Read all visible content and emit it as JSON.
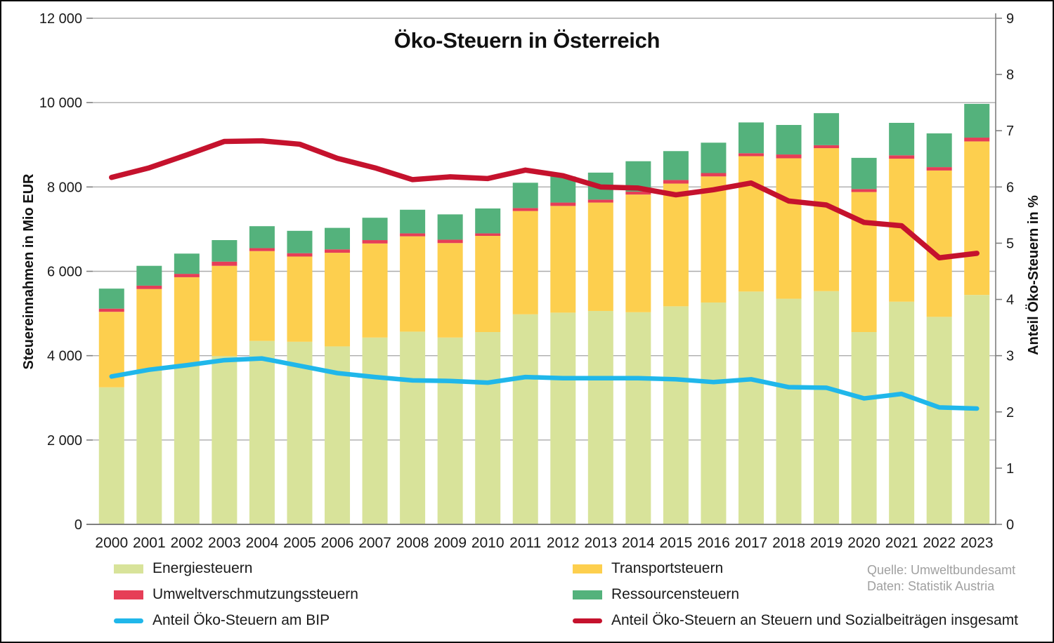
{
  "title": "Öko-Steuern in Österreich",
  "source": {
    "line1": "Quelle: Umweltbundesamt",
    "line2": "Daten: Statistik Austria"
  },
  "colors": {
    "energie": "#d8e39a",
    "transport": "#fdcf4e",
    "umwelt": "#e63e57",
    "ressourcen": "#54b27c",
    "bip_line": "#20b7ea",
    "anteil_line": "#c5122d",
    "grid": "#ababab",
    "axis": "#7f7f7f",
    "text": "#1a1a1a",
    "source_text": "#a0a0a0"
  },
  "legend": {
    "items": [
      {
        "label": "Energiesteuern",
        "type": "swatch",
        "colorKey": "energie"
      },
      {
        "label": "Transportsteuern",
        "type": "swatch",
        "colorKey": "transport"
      },
      {
        "label": "Umweltverschmutzungssteuern",
        "type": "swatch",
        "colorKey": "umwelt"
      },
      {
        "label": "Ressourcensteuern",
        "type": "swatch",
        "colorKey": "ressourcen"
      },
      {
        "label": "Anteil Öko-Steuern am BIP",
        "type": "line",
        "colorKey": "bip_line"
      },
      {
        "label": "Anteil Öko-Steuern an Steuern und Sozialbeiträgen insgesamt",
        "type": "line",
        "colorKey": "anteil_line"
      }
    ]
  },
  "chart_data": {
    "type": "bar+line",
    "title": "Öko-Steuern in Österreich",
    "categories": [
      "2000",
      "2001",
      "2002",
      "2003",
      "2004",
      "2005",
      "2006",
      "2007",
      "2008",
      "2009",
      "2010",
      "2011",
      "2012",
      "2013",
      "2014",
      "2015",
      "2016",
      "2017",
      "2018",
      "2019",
      "2020",
      "2021",
      "2022",
      "2023"
    ],
    "left_axis": {
      "title": "Steuereinnahmen in Mio EUR",
      "min": 0,
      "max": 12000,
      "step": 2000,
      "ticks": [
        {
          "v": 0,
          "label": "0"
        },
        {
          "v": 2000,
          "label": "2 000"
        },
        {
          "v": 4000,
          "label": "4 000"
        },
        {
          "v": 6000,
          "label": "6 000"
        },
        {
          "v": 8000,
          "label": "8 000"
        },
        {
          "v": 10000,
          "label": "10 000"
        },
        {
          "v": 12000,
          "label": "12 000"
        }
      ]
    },
    "right_axis": {
      "title": "Anteil Öko-Steuern in %",
      "min": 0,
      "max": 9,
      "step": 1,
      "ticks": [
        {
          "v": 0,
          "label": "0"
        },
        {
          "v": 1,
          "label": "1"
        },
        {
          "v": 2,
          "label": "2"
        },
        {
          "v": 3,
          "label": "3"
        },
        {
          "v": 4,
          "label": "4"
        },
        {
          "v": 5,
          "label": "5"
        },
        {
          "v": 6,
          "label": "6"
        },
        {
          "v": 7,
          "label": "7"
        },
        {
          "v": 8,
          "label": "8"
        },
        {
          "v": 9,
          "label": "9"
        }
      ]
    },
    "grid": true,
    "legend_position": "bottom",
    "series": [
      {
        "name": "Energiesteuern",
        "type": "bar",
        "axis": "left",
        "colorKey": "energie",
        "values": [
          3250,
          3640,
          3750,
          3990,
          4350,
          4330,
          4220,
          4430,
          4570,
          4430,
          4560,
          4980,
          5020,
          5060,
          5030,
          5170,
          5260,
          5520,
          5350,
          5530,
          4560,
          5280,
          4920,
          5440
        ]
      },
      {
        "name": "Transportsteuern",
        "type": "bar",
        "axis": "left",
        "colorKey": "transport",
        "values": [
          1790,
          1940,
          2110,
          2140,
          2130,
          2020,
          2220,
          2230,
          2260,
          2240,
          2280,
          2450,
          2530,
          2570,
          2790,
          2910,
          2990,
          3210,
          3330,
          3390,
          3320,
          3390,
          3470,
          3640
        ]
      },
      {
        "name": "Umweltverschmutzungssteuern",
        "type": "bar",
        "axis": "left",
        "colorKey": "umwelt",
        "values": [
          75,
          80,
          80,
          100,
          70,
          80,
          80,
          80,
          70,
          80,
          60,
          70,
          80,
          70,
          70,
          85,
          80,
          70,
          90,
          70,
          70,
          80,
          80,
          90
        ]
      },
      {
        "name": "Ressourcensteuern",
        "type": "bar",
        "axis": "left",
        "colorKey": "ressourcen",
        "values": [
          475,
          470,
          480,
          510,
          520,
          530,
          510,
          530,
          560,
          600,
          590,
          600,
          620,
          640,
          720,
          685,
          720,
          730,
          700,
          760,
          740,
          770,
          800,
          800
        ]
      },
      {
        "name": "Anteil Öko-Steuern am BIP",
        "type": "line",
        "axis": "right",
        "colorKey": "bip_line",
        "width": 6.5,
        "values": [
          2.63,
          2.75,
          2.83,
          2.92,
          2.95,
          2.82,
          2.69,
          2.62,
          2.56,
          2.55,
          2.52,
          2.62,
          2.6,
          2.6,
          2.6,
          2.58,
          2.53,
          2.58,
          2.44,
          2.43,
          2.24,
          2.32,
          2.08,
          2.06
        ]
      },
      {
        "name": "Anteil Öko-Steuern an Steuern und Sozialbeiträgen insgesamt",
        "type": "line",
        "axis": "right",
        "colorKey": "anteil_line",
        "width": 7.5,
        "values": [
          6.17,
          6.34,
          6.57,
          6.81,
          6.82,
          6.76,
          6.51,
          6.34,
          6.13,
          6.18,
          6.15,
          6.3,
          6.2,
          6.0,
          5.98,
          5.86,
          5.95,
          6.07,
          5.75,
          5.68,
          5.37,
          5.31,
          4.74,
          4.82
        ]
      }
    ]
  }
}
